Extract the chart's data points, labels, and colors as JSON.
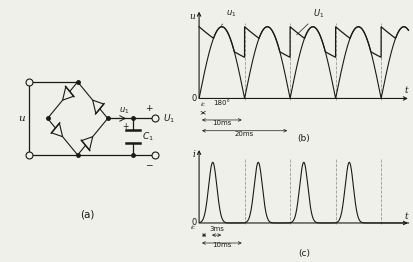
{
  "bg_color": "#f0f0ea",
  "circuit_label": "(a)",
  "waveform_b_label": "(b)",
  "waveform_c_label": "(c)",
  "u_label": "u",
  "i_label": "i",
  "t_label": "t",
  "u1_label": "u₁",
  "U1_label": "U₁",
  "iC_label": "i_C",
  "angle_180": "180°",
  "b_annotations": [
    "10ms",
    "20ms"
  ],
  "c_annotations": [
    "3ms",
    "10ms"
  ],
  "dashed_color": "#999999",
  "line_color": "#1a1a1a",
  "font_size": 6.5
}
